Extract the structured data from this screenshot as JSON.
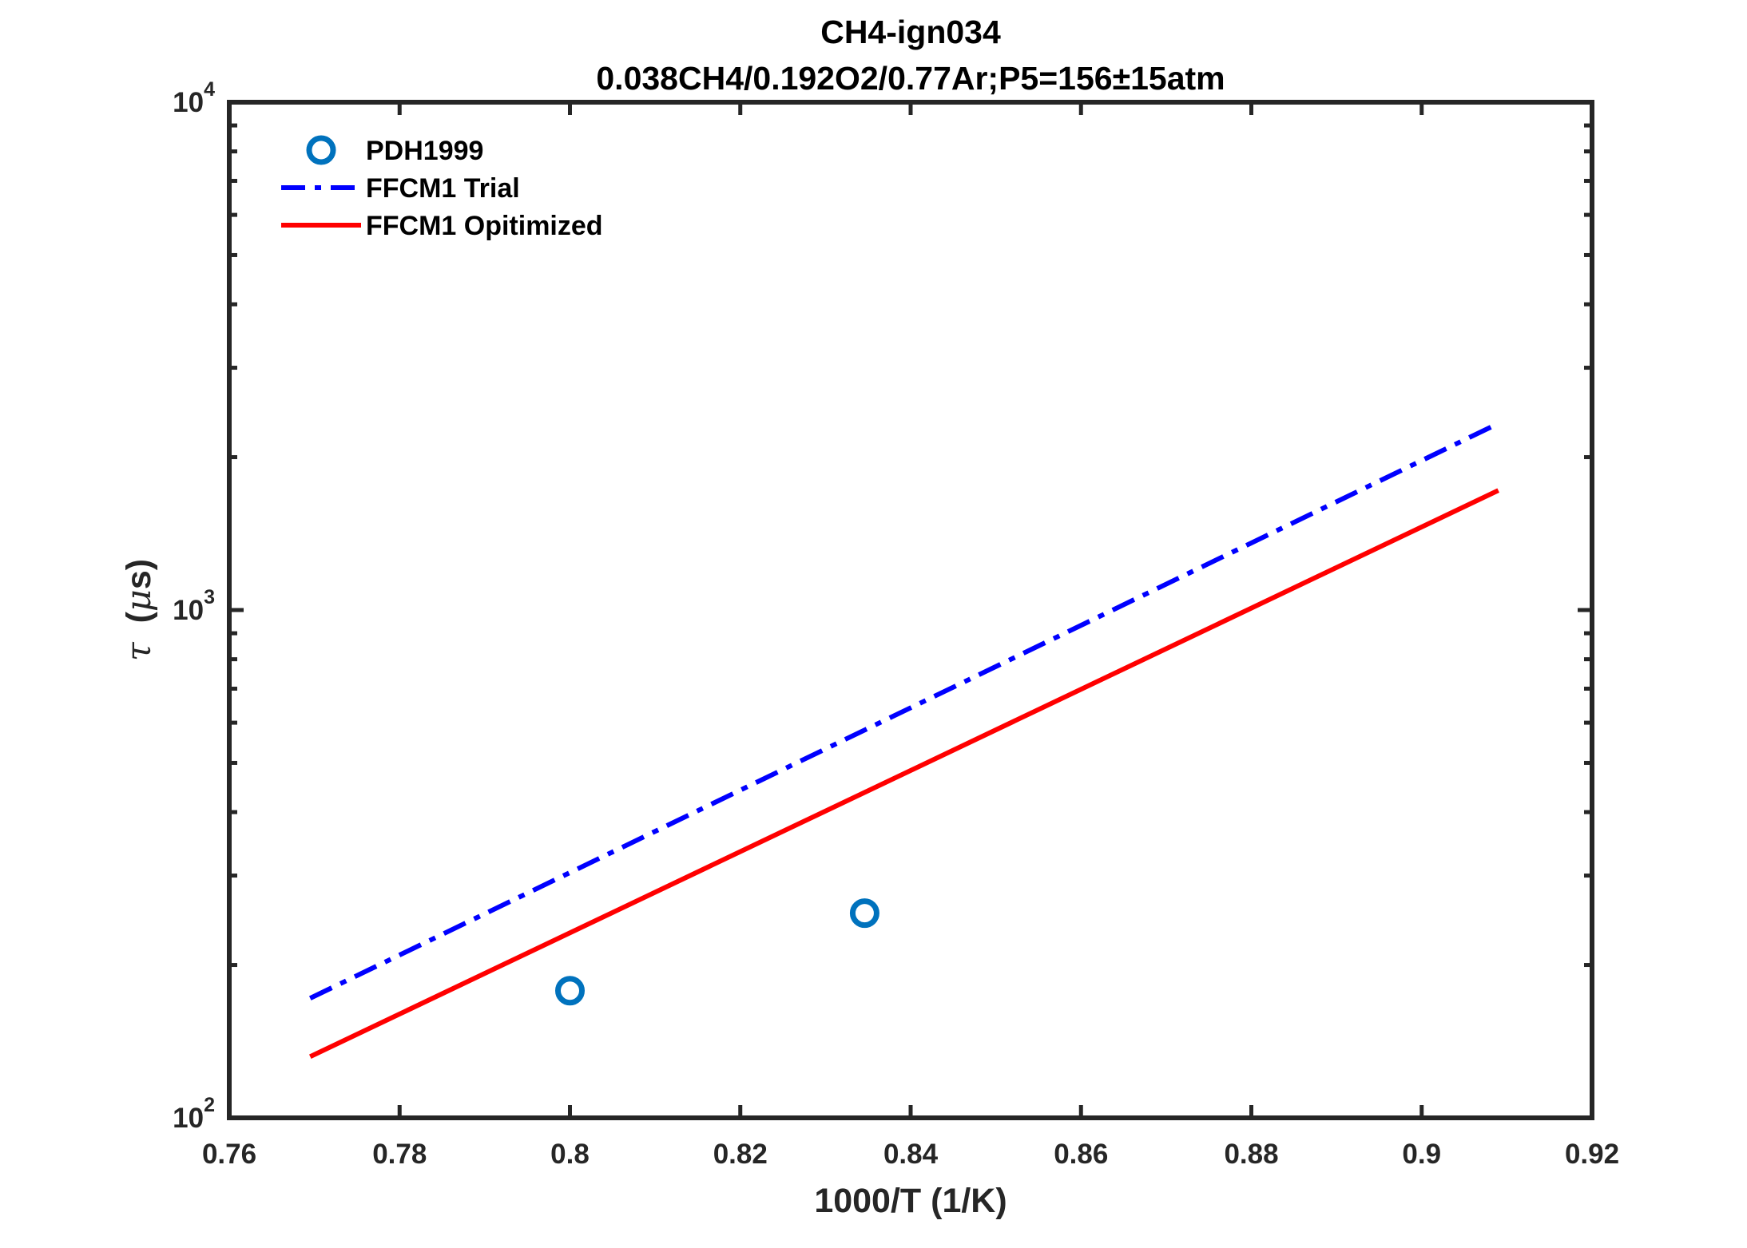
{
  "chart_data": {
    "type": "line",
    "title": "CH4-ign034",
    "subtitle": "0.038CH4/0.192O2/0.77Ar;P5=156±15atm",
    "xlabel": "1000/T (1/K)",
    "ylabel": "τ (μs)",
    "xlim": [
      0.76,
      0.92
    ],
    "ylim": [
      100,
      10000
    ],
    "yscale": "log",
    "xticks": [
      0.76,
      0.78,
      0.8,
      0.82,
      0.84,
      0.86,
      0.88,
      0.9,
      0.92
    ],
    "xtick_labels": [
      "0.76",
      "0.78",
      "0.8",
      "0.82",
      "0.84",
      "0.86",
      "0.88",
      "0.9",
      "0.92"
    ],
    "yticks": [
      100,
      1000,
      10000
    ],
    "ytick_labels": [
      {
        "base": "10",
        "exp": "2"
      },
      {
        "base": "10",
        "exp": "3"
      },
      {
        "base": "10",
        "exp": "4"
      }
    ],
    "grid": false,
    "legend_position": "top-left",
    "series": [
      {
        "name": "PDH1999",
        "style": "markers",
        "marker": "circle",
        "color": "#0072BD",
        "x": [
          0.8,
          0.8346
        ],
        "y": [
          178,
          253
        ]
      },
      {
        "name": "FFCM1 Trial",
        "style": "dash-dot",
        "color": "#0000FF",
        "x": [
          0.7695,
          0.909
        ],
        "y": [
          172,
          2330
        ]
      },
      {
        "name": "FFCM1 Opitimized",
        "style": "solid",
        "color": "#FF0000",
        "x": [
          0.7695,
          0.909
        ],
        "y": [
          132,
          1720
        ]
      }
    ]
  }
}
